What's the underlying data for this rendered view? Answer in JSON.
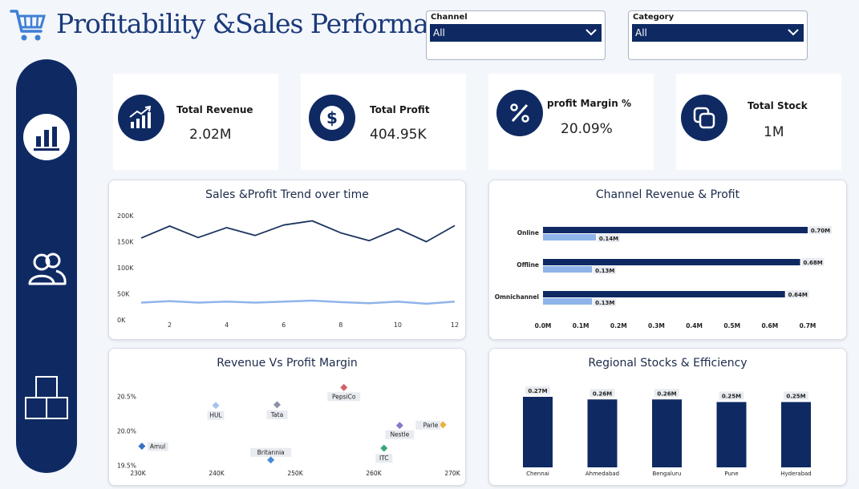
{
  "header": {
    "title": "Profitability &Sales  Performance"
  },
  "filters": [
    {
      "label": "Channel",
      "value": "All"
    },
    {
      "label": "Category",
      "value": "All"
    }
  ],
  "sidebar": {
    "items": [
      "bar-chart-icon",
      "users-icon",
      "boxes-icon"
    ]
  },
  "kpis": [
    {
      "label": "Total Revenue",
      "value": "2.02M",
      "icon": "growth-chart-icon"
    },
    {
      "label": "Total Profit",
      "value": "404.95K",
      "icon": "dollar-icon"
    },
    {
      "label": "profit Margin %",
      "value": "20.09%",
      "icon": "percent-icon"
    },
    {
      "label": "Total Stock",
      "value": "1M",
      "icon": "stack-icon"
    }
  ],
  "colors": {
    "navy": "#0f2a63",
    "light_blue": "#8fb4ea",
    "line_dark": "#1c3560"
  },
  "chart_data": [
    {
      "type": "line",
      "title": "Sales &Profit Trend over time",
      "x": [
        1,
        2,
        3,
        4,
        5,
        6,
        7,
        8,
        9,
        10,
        11,
        12
      ],
      "x_ticks": [
        2,
        4,
        6,
        8,
        10,
        12
      ],
      "y_ticks": [
        "0K",
        "50K",
        "100K",
        "150K",
        "200K"
      ],
      "ylim": [
        0,
        200000
      ],
      "series": [
        {
          "values": [
            157000,
            180000,
            158000,
            177000,
            162000,
            182000,
            190000,
            167000,
            152000,
            175000,
            150000,
            181000
          ]
        },
        {
          "values": [
            33000,
            36000,
            33000,
            35000,
            33000,
            35000,
            37000,
            34000,
            32000,
            35000,
            31000,
            35000
          ]
        }
      ]
    },
    {
      "type": "bar",
      "orientation": "horizontal",
      "title": "Channel Revenue & Profit",
      "categories": [
        "Online",
        "Offline",
        "Omnichannel"
      ],
      "series": [
        {
          "values": [
            0.7,
            0.68,
            0.64
          ],
          "labels": [
            "0.70M",
            "0.68M",
            "0.64M"
          ]
        },
        {
          "values": [
            0.14,
            0.13,
            0.13
          ],
          "labels": [
            "0.14M",
            "0.13M",
            "0.13M"
          ]
        }
      ],
      "x_ticks": [
        "0.0M",
        "0.1M",
        "0.2M",
        "0.3M",
        "0.4M",
        "0.5M",
        "0.6M",
        "0.7M"
      ],
      "xlim": [
        0,
        0.7
      ]
    },
    {
      "type": "scatter",
      "title": "Revenue Vs Profit Margin",
      "x_ticks": [
        "230K",
        "240K",
        "250K",
        "260K",
        "270K"
      ],
      "y_ticks": [
        "19.5%",
        "20.0%",
        "20.5%"
      ],
      "xlim": [
        230000,
        270000
      ],
      "ylim": [
        19.45,
        20.75
      ],
      "points": [
        {
          "label": "Amul",
          "x": 230500,
          "y": 19.78,
          "color": "#3a6fc4"
        },
        {
          "label": "HUL",
          "x": 239900,
          "y": 20.37,
          "color": "#a7c3ee"
        },
        {
          "label": "Tata",
          "x": 247700,
          "y": 20.38,
          "color": "#8b93a6"
        },
        {
          "label": "Britannia",
          "x": 246900,
          "y": 19.58,
          "color": "#4a88d9"
        },
        {
          "label": "PepsiCo",
          "x": 256200,
          "y": 20.63,
          "color": "#d2616b"
        },
        {
          "label": "Nestle",
          "x": 263300,
          "y": 20.08,
          "color": "#8579c9"
        },
        {
          "label": "ITC",
          "x": 261300,
          "y": 19.75,
          "color": "#3aa57a"
        },
        {
          "label": "Parle",
          "x": 268800,
          "y": 20.09,
          "color": "#e8b43c"
        }
      ]
    },
    {
      "type": "bar",
      "title": "Regional Stocks & Efficiency",
      "categories": [
        "Chennai",
        "Ahmedabad",
        "Bengaluru",
        "Pune",
        "Hyderabad"
      ],
      "values": [
        0.27,
        0.26,
        0.26,
        0.25,
        0.25
      ],
      "labels": [
        "0.27M",
        "0.26M",
        "0.26M",
        "0.25M",
        "0.25M"
      ]
    }
  ]
}
